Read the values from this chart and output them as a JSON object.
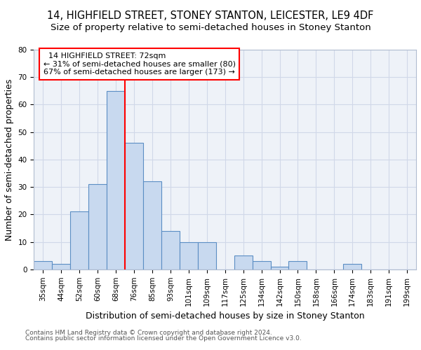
{
  "title_line1": "14, HIGHFIELD STREET, STONEY STANTON, LEICESTER, LE9 4DF",
  "title_line2": "Size of property relative to semi-detached houses in Stoney Stanton",
  "xlabel": "Distribution of semi-detached houses by size in Stoney Stanton",
  "ylabel": "Number of semi-detached properties",
  "categories": [
    "35sqm",
    "44sqm",
    "52sqm",
    "60sqm",
    "68sqm",
    "76sqm",
    "85sqm",
    "93sqm",
    "101sqm",
    "109sqm",
    "117sqm",
    "125sqm",
    "134sqm",
    "142sqm",
    "150sqm",
    "158sqm",
    "166sqm",
    "174sqm",
    "183sqm",
    "191sqm",
    "199sqm"
  ],
  "values": [
    3,
    2,
    21,
    31,
    65,
    46,
    32,
    14,
    10,
    10,
    0,
    5,
    3,
    1,
    3,
    0,
    0,
    2,
    0,
    0,
    0
  ],
  "bar_color": "#c8d9ef",
  "bar_edge_color": "#5b8ec4",
  "grid_color": "#d0d8e8",
  "bg_color": "#eef2f8",
  "vline_x": 4.5,
  "vline_color": "red",
  "property_label": "14 HIGHFIELD STREET: 72sqm",
  "smaller_pct": "31% of semi-detached houses are smaller (80)",
  "larger_pct": "67% of semi-detached houses are larger (173)",
  "annotation_box_color": "white",
  "annotation_box_edge": "red",
  "ylim": [
    0,
    80
  ],
  "yticks": [
    0,
    10,
    20,
    30,
    40,
    50,
    60,
    70,
    80
  ],
  "footnote1": "Contains HM Land Registry data © Crown copyright and database right 2024.",
  "footnote2": "Contains public sector information licensed under the Open Government Licence v3.0.",
  "title_fontsize": 10.5,
  "subtitle_fontsize": 9.5,
  "label_fontsize": 9,
  "tick_fontsize": 7.5,
  "annot_fontsize": 8,
  "footnote_fontsize": 6.5
}
